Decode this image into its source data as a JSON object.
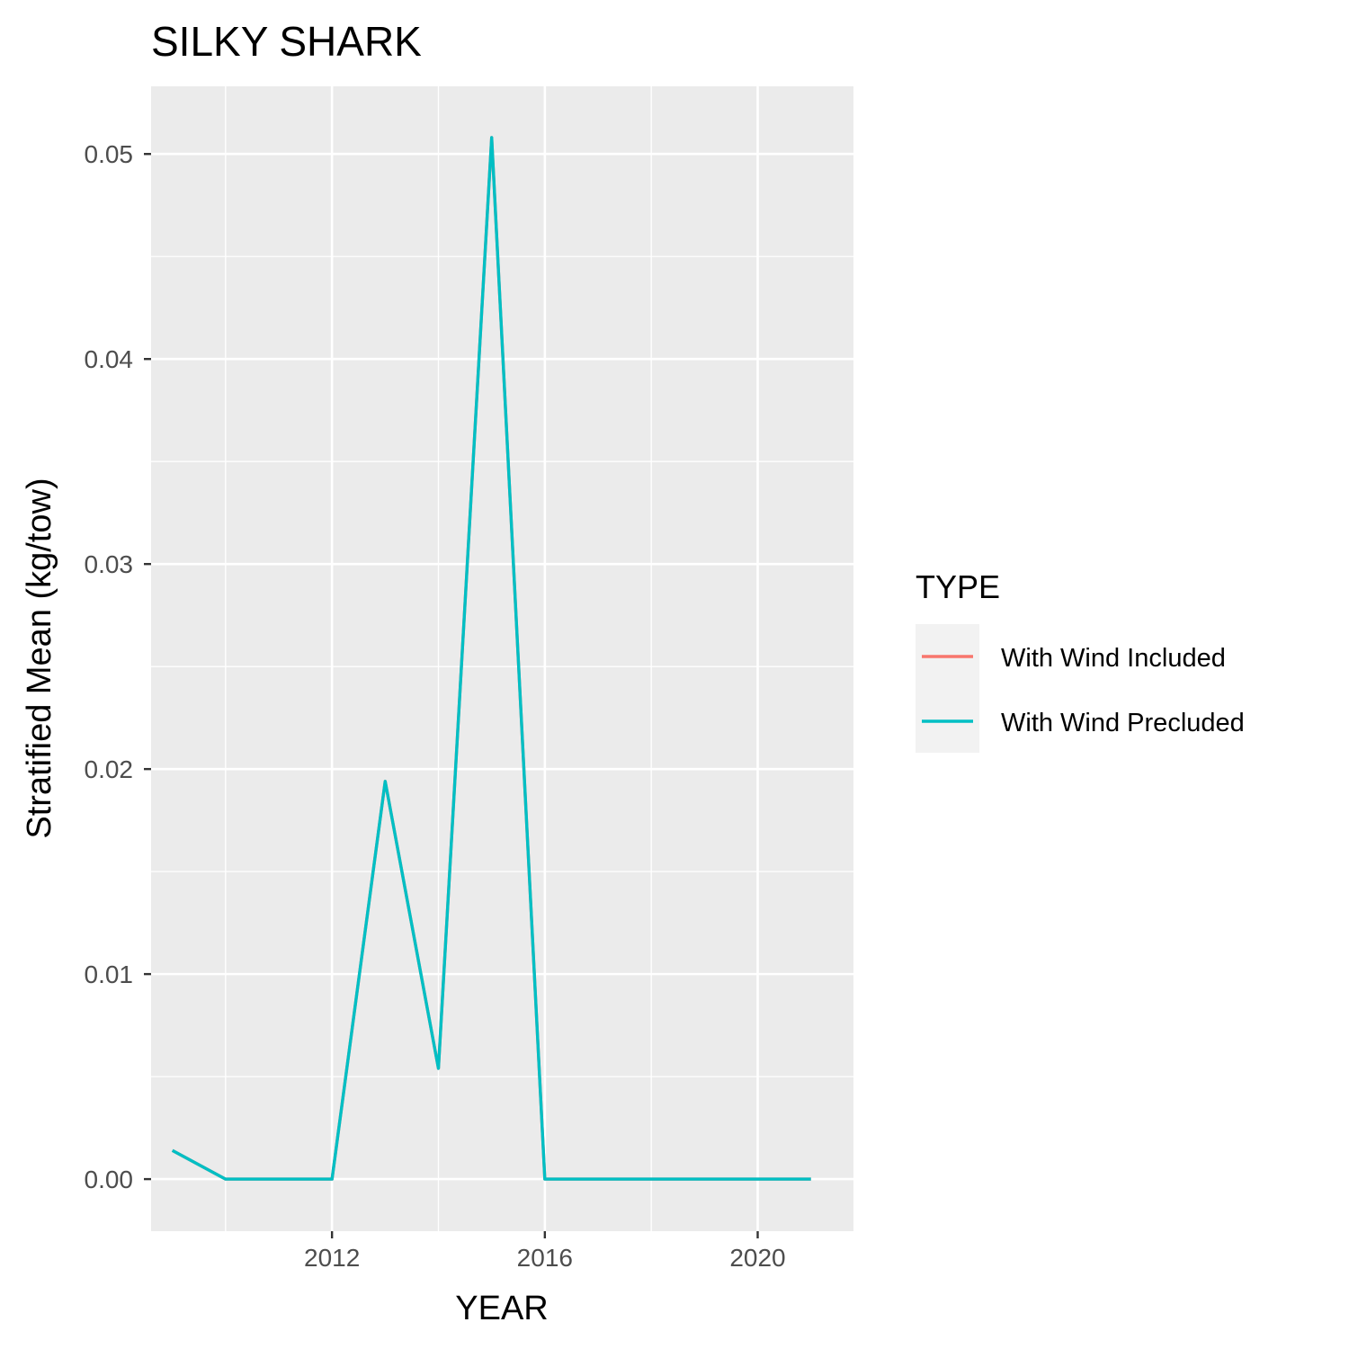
{
  "chart_data": {
    "type": "line",
    "title": "SILKY SHARK",
    "xlabel": "YEAR",
    "ylabel": "Stratified Mean (kg/tow)",
    "xlim": [
      2008.6,
      2021.8
    ],
    "ylim": [
      -0.00254,
      0.0533
    ],
    "x_ticks": [
      2012,
      2016,
      2020
    ],
    "x_tick_labels": [
      "2012",
      "2016",
      "2020"
    ],
    "x_minor_ticks": [
      2010,
      2014,
      2018
    ],
    "y_ticks": [
      0.0,
      0.01,
      0.02,
      0.03,
      0.04,
      0.05
    ],
    "y_tick_labels": [
      "0.00",
      "0.01",
      "0.02",
      "0.03",
      "0.04",
      "0.05"
    ],
    "y_minor_ticks": [
      0.005,
      0.015,
      0.025,
      0.035,
      0.045
    ],
    "grid": true,
    "legend": {
      "title": "TYPE",
      "position": "right"
    },
    "x": [
      2009,
      2010,
      2011,
      2012,
      2013,
      2014,
      2015,
      2016,
      2017,
      2018,
      2019,
      2020,
      2021
    ],
    "series": [
      {
        "name": "With Wind Included",
        "color": "#F8766D",
        "values": [
          0.0014,
          0.0,
          0.0,
          0.0,
          0.0194,
          0.0054,
          0.0508,
          0.0,
          0.0,
          0.0,
          0.0,
          0.0,
          0.0
        ]
      },
      {
        "name": "With Wind Precluded",
        "color": "#00BFC4",
        "values": [
          0.0014,
          0.0,
          0.0,
          0.0,
          0.0194,
          0.0054,
          0.0508,
          0.0,
          0.0,
          0.0,
          0.0,
          0.0,
          0.0
        ]
      }
    ],
    "colors": {
      "panel_background": "#EBEBEB",
      "legend_key_background": "#F2F2F2",
      "grid": "#FFFFFF",
      "tick_text": "#4D4D4D"
    }
  }
}
